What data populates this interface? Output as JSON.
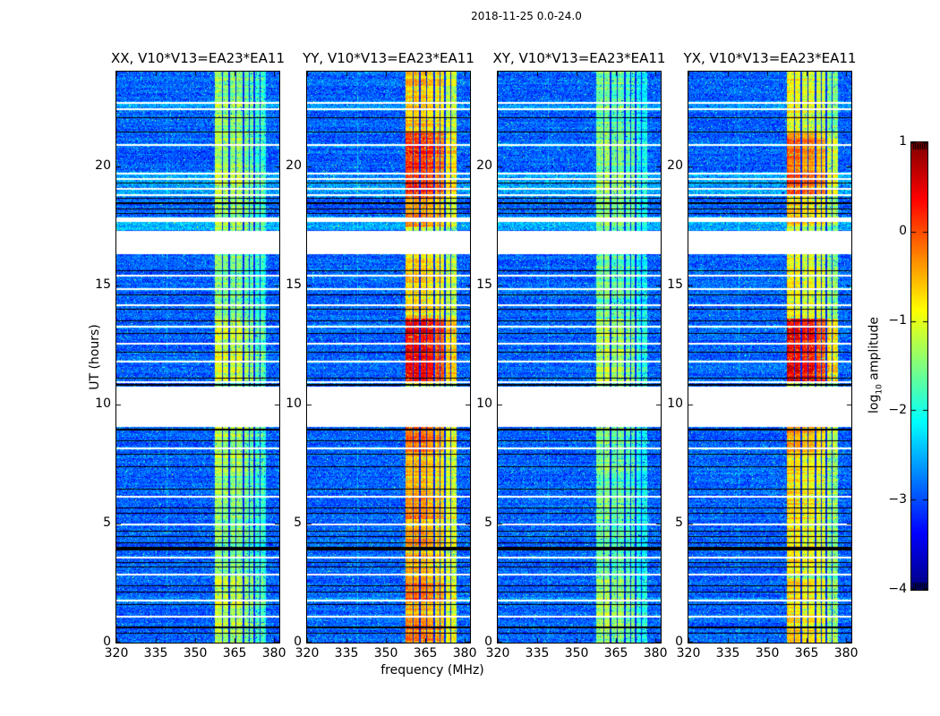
{
  "figure": {
    "title": "2018-11-25 0.0-24.0",
    "background_color": "#ffffff"
  },
  "axes": {
    "x": {
      "label": "frequency (MHz)",
      "ticks": [
        320,
        335,
        350,
        365,
        380
      ],
      "tick_labels": [
        "320",
        "335",
        "350",
        "365",
        "380"
      ],
      "range": [
        320,
        382
      ]
    },
    "y": {
      "label": "UT (hours)",
      "ticks": [
        0,
        5,
        10,
        15,
        20
      ],
      "tick_labels": [
        "0",
        "5",
        "10",
        "15",
        "20"
      ],
      "range": [
        0,
        24
      ]
    }
  },
  "colorbar": {
    "label_prefix": "log",
    "label_sub": "10",
    "label_suffix": " amplitude",
    "ticks": [
      1,
      0,
      -1,
      -2,
      -3,
      -4
    ],
    "tick_labels": [
      "1",
      "0",
      "−1",
      "−2",
      "−3",
      "−4"
    ],
    "range": [
      -4,
      1
    ],
    "colormap": "jet"
  },
  "chart_data": {
    "type": "heatmap",
    "subtype": "dynamic-spectrum-spectrogram",
    "colormap": "jet",
    "value_range": [
      -4,
      1
    ],
    "x_range_mhz": [
      320,
      382
    ],
    "ut_range_hours": [
      0,
      24
    ],
    "background_level": -2.9,
    "rfi_strips_mhz": [
      [
        357.6,
        362.6
      ],
      [
        363.2,
        368.0
      ],
      [
        368.6,
        372.2
      ],
      [
        372.8,
        376.8
      ]
    ],
    "strip_offsets": [
      0.15,
      0.05,
      -0.05,
      -0.3
    ],
    "strip_blob_scale": [
      1.0,
      1.0,
      0.82,
      0.55
    ],
    "flagged_channels_mhz": [
      360.4,
      365.5,
      370.6,
      374.8
    ],
    "faint_channels_mhz": [
      339.4
    ],
    "white_gaps_ut": [
      [
        16.33,
        17.3
      ],
      [
        9.07,
        10.76
      ]
    ],
    "white_lines_ut": [
      [
        22.68,
        2
      ],
      [
        22.42,
        2
      ],
      [
        20.9,
        2
      ],
      [
        19.72,
        2
      ],
      [
        19.49,
        2
      ],
      [
        19.07,
        2
      ],
      [
        18.81,
        2
      ],
      [
        17.78,
        5
      ],
      [
        15.42,
        2
      ],
      [
        14.87,
        2
      ],
      [
        14.2,
        2
      ],
      [
        13.27,
        2
      ],
      [
        12.56,
        2
      ],
      [
        11.8,
        2
      ],
      [
        10.95,
        2
      ],
      [
        8.16,
        2
      ],
      [
        6.13,
        2
      ],
      [
        4.96,
        2
      ],
      [
        3.58,
        2
      ],
      [
        2.85,
        2
      ],
      [
        1.78,
        2
      ],
      [
        1.08,
        2
      ]
    ],
    "black_lines_ut": [
      [
        22.08,
        1
      ],
      [
        21.45,
        1
      ],
      [
        19.3,
        1
      ],
      [
        18.67,
        1
      ],
      [
        18.48,
        2
      ],
      [
        18.22,
        1
      ],
      [
        18.02,
        1
      ],
      [
        15.62,
        1
      ],
      [
        14.62,
        1
      ],
      [
        14.02,
        1
      ],
      [
        13.52,
        1
      ],
      [
        12.98,
        1
      ],
      [
        12.2,
        1
      ],
      [
        11.13,
        1
      ],
      [
        10.82,
        2
      ],
      [
        8.95,
        2
      ],
      [
        8.5,
        1
      ],
      [
        7.9,
        1
      ],
      [
        7.4,
        1
      ],
      [
        6.47,
        1
      ],
      [
        5.67,
        1
      ],
      [
        5.45,
        1
      ],
      [
        4.7,
        1
      ],
      [
        4.45,
        1
      ],
      [
        4.2,
        1
      ],
      [
        3.95,
        4
      ],
      [
        3.35,
        1
      ],
      [
        3.18,
        1
      ],
      [
        2.37,
        1
      ],
      [
        2.14,
        1
      ],
      [
        1.58,
        1
      ],
      [
        0.65,
        2
      ],
      [
        0.4,
        1
      ]
    ],
    "bright_rows_ut": [
      [
        17.35,
        17.9,
        0.4
      ],
      [
        18.75,
        19.8,
        0.3
      ],
      [
        22.35,
        22.75,
        0.25
      ],
      [
        13.2,
        13.35,
        0.25
      ],
      [
        11.75,
        11.9,
        0.2
      ],
      [
        14.8,
        14.95,
        0.2
      ],
      [
        1.7,
        1.9,
        0.2
      ],
      [
        20.85,
        21.0,
        0.2
      ],
      [
        12.5,
        12.62,
        0.15
      ],
      [
        8.1,
        8.25,
        0.2
      ]
    ],
    "panels": [
      {
        "id": "XX",
        "title": "XX, V10*V13=EA23*EA11",
        "band_base": -1.7,
        "blobs": [
          [
            10.9,
            13.6,
            0.55
          ],
          [
            18.8,
            21.4,
            0.3
          ],
          [
            17.5,
            18.8,
            0.2
          ],
          [
            21.4,
            24,
            0.15
          ],
          [
            13.6,
            16.33,
            0.1
          ],
          [
            0.4,
            2.7,
            0.45
          ],
          [
            7.0,
            8.6,
            0.3
          ],
          [
            5.2,
            6.3,
            0.2
          ],
          [
            2.7,
            5.2,
            0.1
          ],
          [
            6.3,
            7.0,
            0.15
          ],
          [
            0,
            0.4,
            0.25
          ],
          [
            8.6,
            9.07,
            0.35
          ]
        ]
      },
      {
        "id": "YY",
        "title": "YY, V10*V13=EA23*EA11",
        "band_base": -1.15,
        "blobs": [
          [
            10.9,
            13.6,
            1.45
          ],
          [
            18.8,
            21.4,
            1.25
          ],
          [
            17.5,
            18.8,
            0.75
          ],
          [
            21.4,
            24,
            0.45
          ],
          [
            13.6,
            16.33,
            0.35
          ],
          [
            8.0,
            9.07,
            0.95
          ],
          [
            7.0,
            8.0,
            0.55
          ],
          [
            6.3,
            7.0,
            0.45
          ],
          [
            5.2,
            6.3,
            0.8
          ],
          [
            4.7,
            5.2,
            0.45
          ],
          [
            4.1,
            4.7,
            0.6
          ],
          [
            2.9,
            4.1,
            0.5
          ],
          [
            2.7,
            2.9,
            0.5
          ],
          [
            1.8,
            2.7,
            0.85
          ],
          [
            0.9,
            1.8,
            0.55
          ],
          [
            0,
            0.9,
            0.8
          ]
        ]
      },
      {
        "id": "XY",
        "title": "XY, V10*V13=EA23*EA11",
        "band_base": -1.78,
        "blobs": [
          [
            10.9,
            13.6,
            0.45
          ],
          [
            18.8,
            21.4,
            0.22
          ],
          [
            17.5,
            18.8,
            0.15
          ],
          [
            21.4,
            24,
            0.1
          ],
          [
            13.6,
            16.33,
            0.08
          ],
          [
            0.4,
            2.7,
            0.32
          ],
          [
            7.0,
            8.6,
            0.18
          ],
          [
            5.2,
            6.3,
            0.12
          ],
          [
            8.6,
            9.07,
            0.25
          ],
          [
            0,
            0.4,
            0.18
          ]
        ]
      },
      {
        "id": "YX",
        "title": "YX, V10*V13=EA23*EA11",
        "band_base": -1.35,
        "blobs": [
          [
            10.9,
            13.6,
            1.6
          ],
          [
            18.8,
            21.4,
            1.05
          ],
          [
            17.5,
            18.8,
            0.55
          ],
          [
            21.4,
            24,
            0.3
          ],
          [
            13.6,
            16.33,
            0.25
          ],
          [
            8.0,
            9.07,
            0.85
          ],
          [
            6.3,
            8.0,
            0.4
          ],
          [
            5.2,
            6.3,
            0.5
          ],
          [
            2.9,
            5.2,
            0.4
          ],
          [
            1.8,
            2.7,
            0.55
          ],
          [
            0.9,
            1.8,
            0.4
          ],
          [
            0,
            0.9,
            0.5
          ]
        ]
      }
    ]
  }
}
